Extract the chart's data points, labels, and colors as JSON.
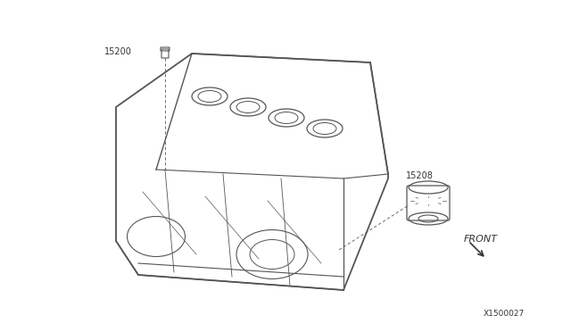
{
  "background_color": "#ffffff",
  "fig_width": 6.4,
  "fig_height": 3.72,
  "dpi": 100,
  "label_15200": "15200",
  "label_15208": "15208",
  "label_front": "FRONT",
  "label_diagram_id": "X1500027",
  "line_color": "#555555",
  "text_color": "#333333"
}
